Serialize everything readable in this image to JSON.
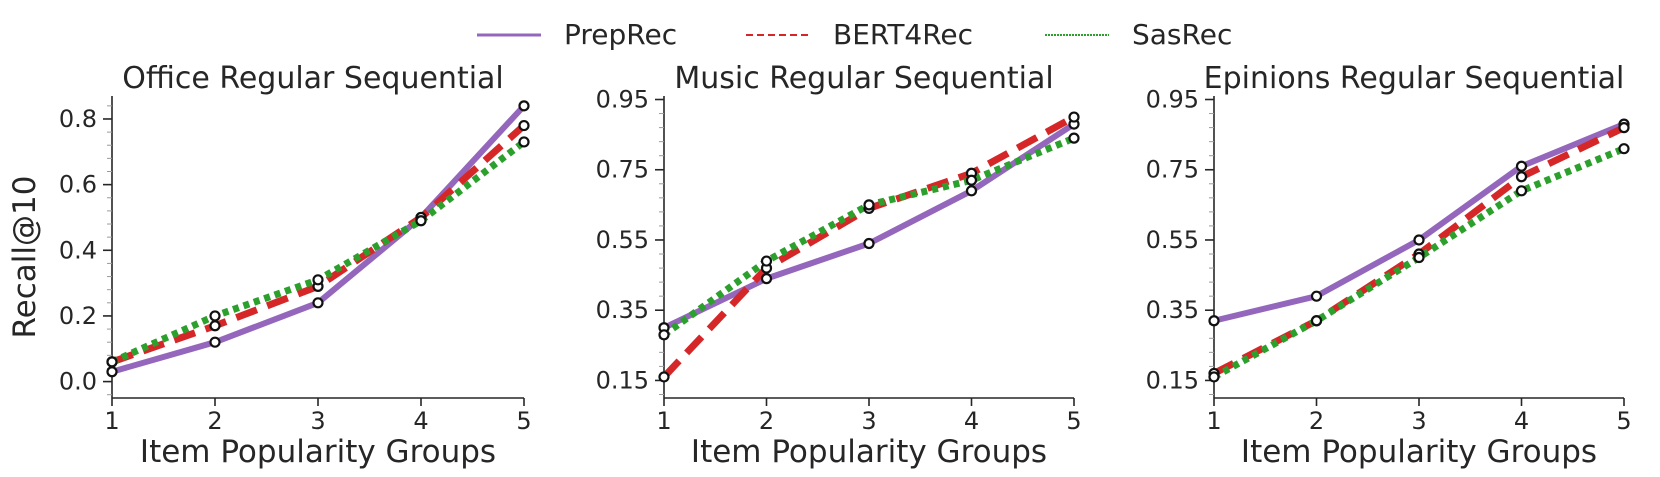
{
  "legend": [
    {
      "name": "PrepRec",
      "color": "#9467bd",
      "dash": "solid"
    },
    {
      "name": "BERT4Rec",
      "color": "#d62728",
      "dash": "dashed"
    },
    {
      "name": "SasRec",
      "color": "#2ca02c",
      "dash": "dotted"
    }
  ],
  "chart_data": [
    {
      "type": "line",
      "title": "Office Regular Sequential",
      "xlabel": "Item Popularity Groups",
      "ylabel": "Recall@10",
      "x": [
        1,
        2,
        3,
        4,
        5
      ],
      "xticks": [
        "1",
        "2",
        "3",
        "4",
        "5"
      ],
      "ylim": [
        -0.05,
        0.87
      ],
      "yticks": [
        "0.0",
        "0.2",
        "0.4",
        "0.6",
        "0.8"
      ],
      "ytick_values": [
        0.0,
        0.2,
        0.4,
        0.6,
        0.8
      ],
      "grid": false,
      "series": [
        {
          "name": "PrepRec",
          "values": [
            0.03,
            0.12,
            0.24,
            0.5,
            0.84
          ]
        },
        {
          "name": "BERT4Rec",
          "values": [
            0.06,
            0.17,
            0.29,
            0.5,
            0.78
          ]
        },
        {
          "name": "SasRec",
          "values": [
            0.06,
            0.2,
            0.31,
            0.49,
            0.73
          ]
        }
      ]
    },
    {
      "type": "line",
      "title": "Music Regular Sequential",
      "xlabel": "Item Popularity Groups",
      "ylabel": "",
      "x": [
        1,
        2,
        3,
        4,
        5
      ],
      "xticks": [
        "1",
        "2",
        "3",
        "4",
        "5"
      ],
      "ylim": [
        0.1,
        0.96
      ],
      "yticks": [
        "0.15",
        "0.35",
        "0.55",
        "0.75",
        "0.95"
      ],
      "ytick_values": [
        0.15,
        0.35,
        0.55,
        0.75,
        0.95
      ],
      "grid": false,
      "series": [
        {
          "name": "PrepRec",
          "values": [
            0.3,
            0.44,
            0.54,
            0.69,
            0.88
          ]
        },
        {
          "name": "BERT4Rec",
          "values": [
            0.16,
            0.47,
            0.64,
            0.74,
            0.9
          ]
        },
        {
          "name": "SasRec",
          "values": [
            0.28,
            0.49,
            0.65,
            0.72,
            0.84
          ]
        }
      ]
    },
    {
      "type": "line",
      "title": "Epinions Regular Sequential",
      "xlabel": "Item Popularity Groups",
      "ylabel": "",
      "x": [
        1,
        2,
        3,
        4,
        5
      ],
      "xticks": [
        "1",
        "2",
        "3",
        "4",
        "5"
      ],
      "ylim": [
        0.1,
        0.96
      ],
      "yticks": [
        "0.15",
        "0.35",
        "0.55",
        "0.75",
        "0.95"
      ],
      "ytick_values": [
        0.15,
        0.35,
        0.55,
        0.75,
        0.95
      ],
      "grid": false,
      "series": [
        {
          "name": "PrepRec",
          "values": [
            0.32,
            0.39,
            0.55,
            0.76,
            0.88
          ]
        },
        {
          "name": "BERT4Rec",
          "values": [
            0.17,
            0.32,
            0.51,
            0.73,
            0.87
          ]
        },
        {
          "name": "SasRec",
          "values": [
            0.16,
            0.32,
            0.5,
            0.69,
            0.81
          ]
        }
      ]
    }
  ]
}
